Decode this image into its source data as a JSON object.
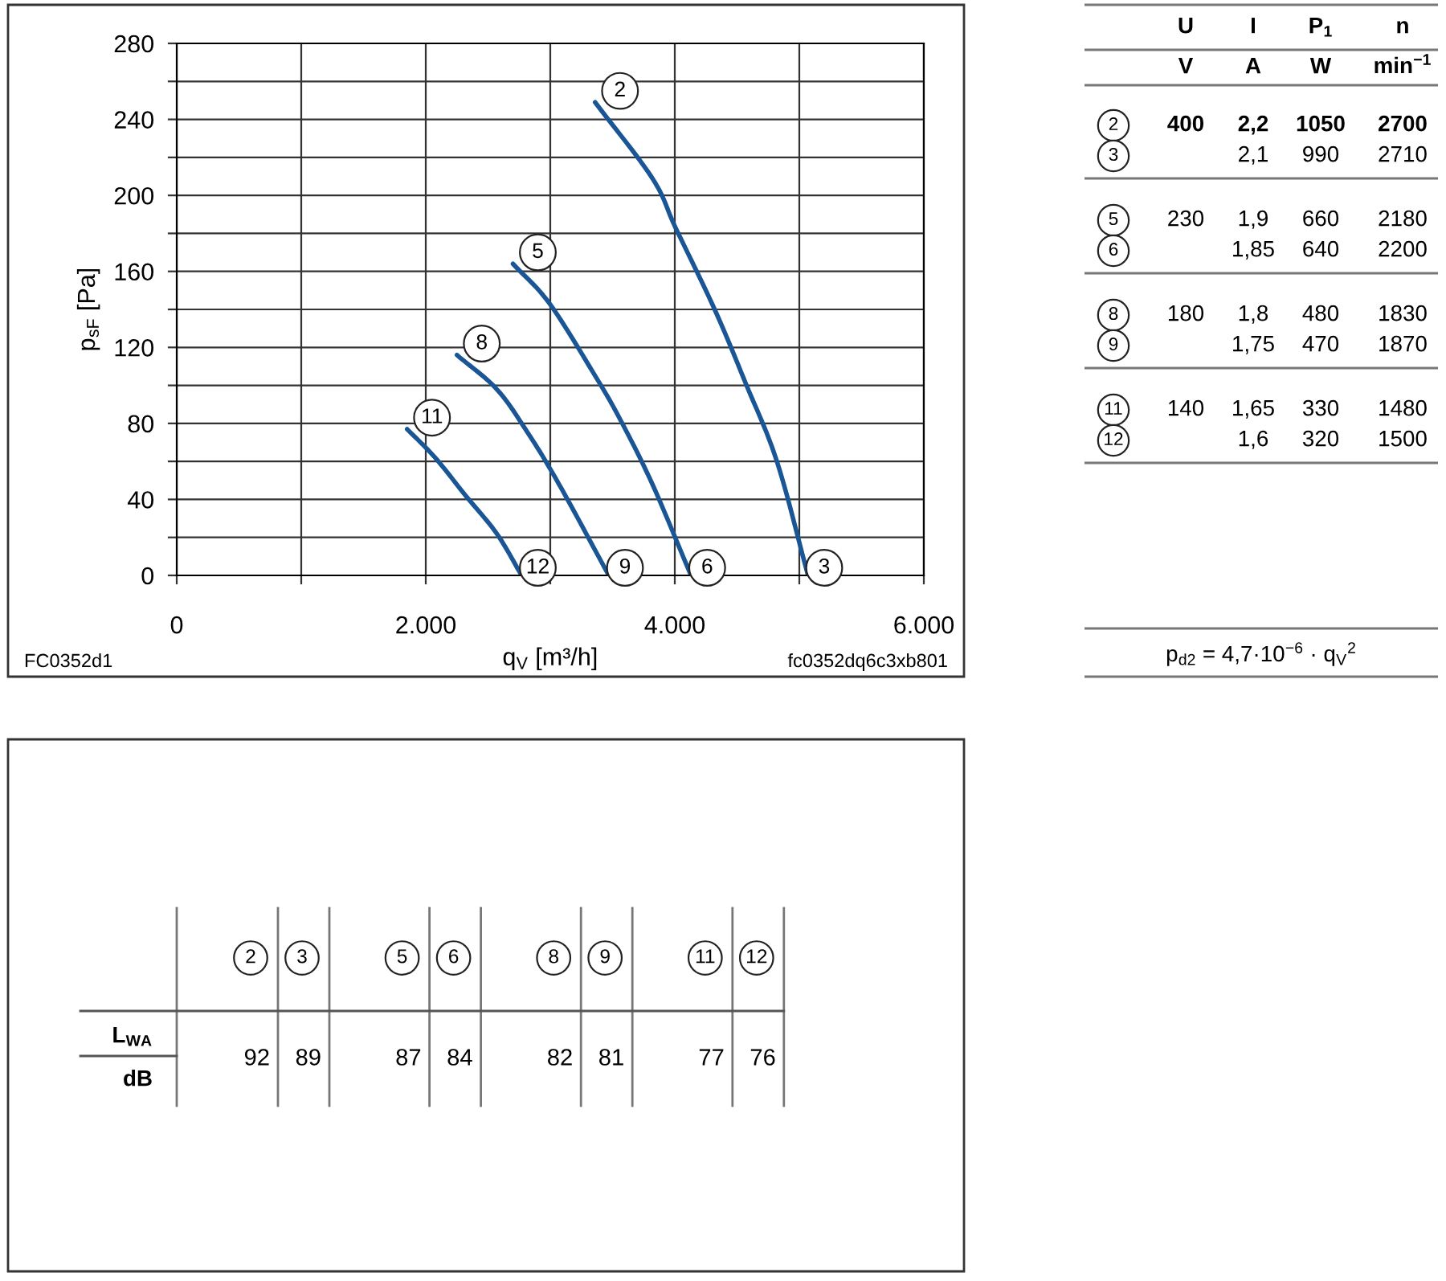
{
  "chart_data": [
    {
      "type": "line",
      "xlabel": "q$_{V}$ [m³/h]",
      "ylabel": "p$_{sF}$ [Pa]",
      "xlim": [
        0,
        6000
      ],
      "ylim": [
        0,
        280
      ],
      "xticks": [
        0,
        {
          "value": 1000,
          "label": null
        },
        {
          "value": 2000,
          "label": "2.000"
        },
        {
          "value": 3000,
          "label": null
        },
        {
          "value": 4000,
          "label": "4.000"
        },
        {
          "value": 5000,
          "label": null
        },
        {
          "value": 6000,
          "label": "6.000"
        }
      ],
      "yticks": [
        0,
        {
          "value": 20,
          "label": null
        },
        40,
        {
          "value": 60,
          "label": null
        },
        80,
        {
          "value": 100,
          "label": null
        },
        120,
        {
          "value": 140,
          "label": null
        },
        160,
        {
          "value": 180,
          "label": null
        },
        200,
        {
          "value": 220,
          "label": null
        },
        240,
        {
          "value": 260,
          "label": null
        },
        280
      ],
      "grid": true,
      "marker": "none",
      "line_style": "solid",
      "series": [
        {
          "color": "#1a5596",
          "x": [
            3360,
            3820,
            4006,
            4320,
            4570,
            4820,
            5070
          ],
          "values": [
            249,
            209,
            183,
            140,
            101,
            60,
            0
          ]
        },
        {
          "color": "#1a5596",
          "x": [
            2700,
            2995,
            3370,
            3570,
            3820,
            4130
          ],
          "values": [
            164,
            143,
            104,
            81,
            48,
            0
          ]
        },
        {
          "color": "#1a5596",
          "x": [
            2250,
            2570,
            2820,
            3070,
            3470
          ],
          "values": [
            116,
            98,
            75,
            48,
            0
          ]
        },
        {
          "color": "#1a5596",
          "x": [
            1850,
            2075,
            2320,
            2570,
            2770
          ],
          "values": [
            77,
            62,
            42,
            22,
            0
          ]
        }
      ],
      "annotations": [
        "2",
        "3",
        "5",
        "6",
        "8",
        "9",
        "11",
        "12",
        "FC0352d1",
        "fc0352dq6c3xb801"
      ]
    },
    {
      "type": "other",
      "categories": [
        "U",
        "I",
        "P$_{1}$",
        "n"
      ],
      "y_categories": [
        null,
        "2",
        "3",
        "5",
        "6",
        "8",
        "9",
        "11",
        "12"
      ],
      "cell_labels": [
        [
          "V",
          "A",
          "W",
          "min$^{−1}$"
        ],
        [
          "400",
          "2,2",
          "1050",
          "2700"
        ],
        [
          null,
          "2,1",
          "990",
          "2710"
        ],
        [
          "230",
          "1,9",
          "660",
          "2180"
        ],
        [
          null,
          "1,85",
          "640",
          "2200"
        ],
        [
          "180",
          "1,8",
          "480",
          "1830"
        ],
        [
          null,
          "1,75",
          "470",
          "1870"
        ],
        [
          "140",
          "1,65",
          "330",
          "1480"
        ],
        [
          null,
          "1,6",
          "320",
          "1500"
        ]
      ],
      "annotations": [
        "p$_{d2}$ = 4,7·10$^{−6}$ · q$_{V}$$^{2}$"
      ]
    },
    {
      "type": "other",
      "categories": [
        "2",
        "3",
        "5",
        "6",
        "8",
        "9",
        "11",
        "12"
      ],
      "values": [
        92,
        89,
        87,
        84,
        82,
        81,
        77,
        76
      ],
      "data_labels": true,
      "y_categories": [
        "L$_{WA}$",
        "dB"
      ]
    }
  ]
}
